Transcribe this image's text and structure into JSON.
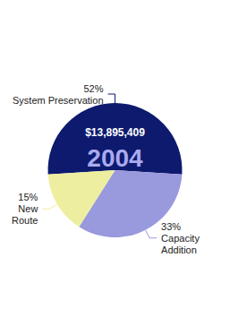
{
  "chart_data": {
    "type": "pie",
    "categories": [
      "System Preservation",
      "Capacity\nAddition",
      "New\nRoute"
    ],
    "values": [
      52,
      33,
      15
    ],
    "value_labels": [
      "52%",
      "33%",
      "15%"
    ],
    "colors": [
      "#0d1a6e",
      "#9999dd",
      "#eeeea0"
    ],
    "data_labels": true,
    "annotations": [
      {
        "text": "$13,895,409",
        "color": "#ffffff"
      },
      {
        "text": "2004",
        "color": "#aaaaee"
      }
    ]
  }
}
